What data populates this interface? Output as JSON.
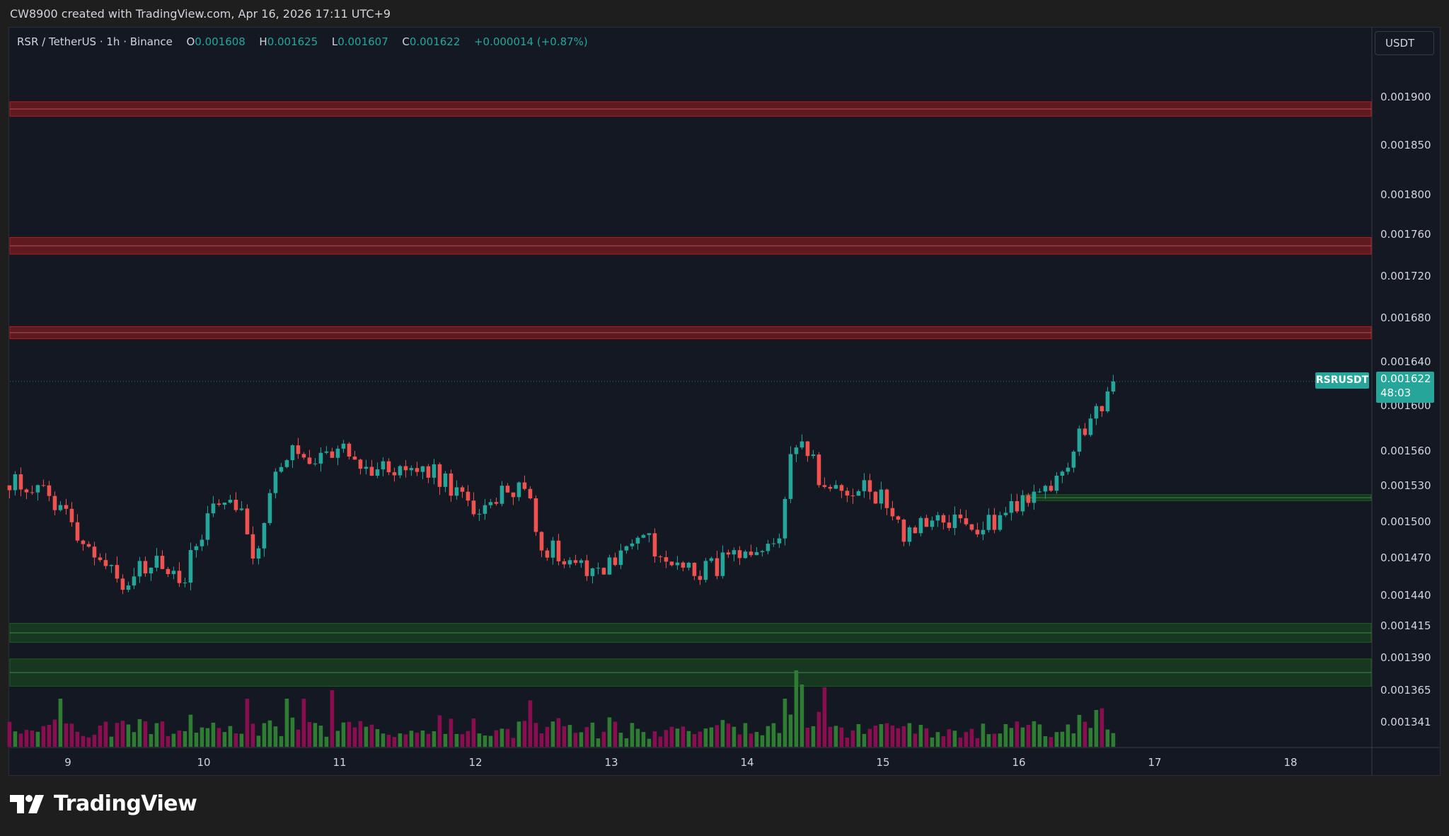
{
  "credit": "CW8900 created with TradingView.com, Apr 16, 2026 17:11 UTC+9",
  "legend": {
    "symbol": "RSR / TetherUS · 1h · Binance",
    "o_label": "O",
    "o_value": "0.001608",
    "h_label": "H",
    "h_value": "0.001625",
    "l_label": "L",
    "l_value": "0.001607",
    "c_label": "C",
    "c_value": "0.001622",
    "change": "+0.000014 (+0.87%)"
  },
  "currency": "USDT",
  "symbol_tag": "RSRUSDT",
  "price_tag": {
    "price": "0.001622",
    "countdown": "48:03"
  },
  "footer": {
    "brand": "TradingView"
  },
  "colors": {
    "up": "#26a69a",
    "down": "#ef5350",
    "vol_up": "#2e7d32",
    "vol_down": "#880e4f",
    "resistance": "#b71c1c",
    "support": "#1b5e20",
    "background": "#141823"
  },
  "icons": {
    "logo": "tradingview-logo-icon"
  },
  "chart_data": {
    "type": "candlestick",
    "interval": "1h",
    "y_axis_ticks": [
      "0.001900",
      "0.001850",
      "0.001800",
      "0.001760",
      "0.001720",
      "0.001680",
      "0.001640",
      "0.001600",
      "0.001560",
      "0.001530",
      "0.001500",
      "0.001470",
      "0.001440",
      "0.001415",
      "0.001390",
      "0.001365",
      "0.001341"
    ],
    "x_axis_ticks": [
      "9",
      "10",
      "11",
      "12",
      "13",
      "14",
      "15",
      "16",
      "17",
      "18"
    ],
    "last_price": 0.001622,
    "zones": [
      {
        "kind": "resistance",
        "low": 0.00188,
        "high": 0.001895
      },
      {
        "kind": "resistance",
        "low": 0.001741,
        "high": 0.001757
      },
      {
        "kind": "resistance",
        "low": 0.001661,
        "high": 0.001672
      },
      {
        "kind": "support",
        "low": 0.0015175,
        "high": 0.0015225,
        "from_day": 16.05
      },
      {
        "kind": "support",
        "low": 0.001402,
        "high": 0.001417
      },
      {
        "kind": "support",
        "low": 0.001368,
        "high": 0.001389
      }
    ],
    "anchors": [
      {
        "t": 8.57,
        "price": 0.001535
      },
      {
        "t": 8.8,
        "price": 0.001525
      },
      {
        "t": 9.0,
        "price": 0.001505
      },
      {
        "t": 9.15,
        "price": 0.00148
      },
      {
        "t": 9.3,
        "price": 0.001465
      },
      {
        "t": 9.4,
        "price": 0.00145
      },
      {
        "t": 9.55,
        "price": 0.00146
      },
      {
        "t": 9.7,
        "price": 0.001465
      },
      {
        "t": 9.85,
        "price": 0.001455
      },
      {
        "t": 10.0,
        "price": 0.001495
      },
      {
        "t": 10.15,
        "price": 0.001525
      },
      {
        "t": 10.3,
        "price": 0.001505
      },
      {
        "t": 10.37,
        "price": 0.00147
      },
      {
        "t": 10.5,
        "price": 0.00153
      },
      {
        "t": 10.65,
        "price": 0.00156
      },
      {
        "t": 10.75,
        "price": 0.001545
      },
      {
        "t": 10.9,
        "price": 0.00156
      },
      {
        "t": 11.0,
        "price": 0.00156
      },
      {
        "t": 11.2,
        "price": 0.001545
      },
      {
        "t": 11.45,
        "price": 0.001545
      },
      {
        "t": 11.7,
        "price": 0.00154
      },
      {
        "t": 11.9,
        "price": 0.00152
      },
      {
        "t": 12.05,
        "price": 0.001505
      },
      {
        "t": 12.25,
        "price": 0.00153
      },
      {
        "t": 12.4,
        "price": 0.001525
      },
      {
        "t": 12.47,
        "price": 0.00148
      },
      {
        "t": 12.6,
        "price": 0.001475
      },
      {
        "t": 12.8,
        "price": 0.001465
      },
      {
        "t": 12.95,
        "price": 0.00146
      },
      {
        "t": 13.15,
        "price": 0.001485
      },
      {
        "t": 13.25,
        "price": 0.00149
      },
      {
        "t": 13.35,
        "price": 0.001465
      },
      {
        "t": 13.5,
        "price": 0.001465
      },
      {
        "t": 13.7,
        "price": 0.00146
      },
      {
        "t": 13.9,
        "price": 0.00147
      },
      {
        "t": 14.1,
        "price": 0.001465
      },
      {
        "t": 14.25,
        "price": 0.001495
      },
      {
        "t": 14.32,
        "price": 0.001565
      },
      {
        "t": 14.4,
        "price": 0.00156
      },
      {
        "t": 14.5,
        "price": 0.001555
      },
      {
        "t": 14.55,
        "price": 0.001525
      },
      {
        "t": 14.7,
        "price": 0.00153
      },
      {
        "t": 14.9,
        "price": 0.001525
      },
      {
        "t": 15.0,
        "price": 0.00152
      },
      {
        "t": 15.15,
        "price": 0.00149
      },
      {
        "t": 15.3,
        "price": 0.001495
      },
      {
        "t": 15.5,
        "price": 0.0015
      },
      {
        "t": 15.65,
        "price": 0.001495
      },
      {
        "t": 15.8,
        "price": 0.0015
      },
      {
        "t": 15.95,
        "price": 0.001515
      },
      {
        "t": 16.1,
        "price": 0.00152
      },
      {
        "t": 16.3,
        "price": 0.001535
      },
      {
        "t": 16.4,
        "price": 0.00156
      },
      {
        "t": 16.5,
        "price": 0.001585
      },
      {
        "t": 16.6,
        "price": 0.0016
      },
      {
        "t": 16.7,
        "price": 0.001622
      }
    ],
    "volume_spikes": [
      {
        "t": 8.95,
        "v": 0.85
      },
      {
        "t": 10.33,
        "v": 0.85
      },
      {
        "t": 10.6,
        "v": 0.85
      },
      {
        "t": 10.75,
        "v": 0.85
      },
      {
        "t": 10.93,
        "v": 1.0
      },
      {
        "t": 12.42,
        "v": 0.82
      },
      {
        "t": 14.28,
        "v": 0.85
      },
      {
        "t": 14.35,
        "v": 1.35
      },
      {
        "t": 14.4,
        "v": 1.1
      },
      {
        "t": 14.55,
        "v": 1.05
      },
      {
        "t": 16.58,
        "v": 0.65
      },
      {
        "t": 16.62,
        "v": 0.68
      }
    ]
  }
}
